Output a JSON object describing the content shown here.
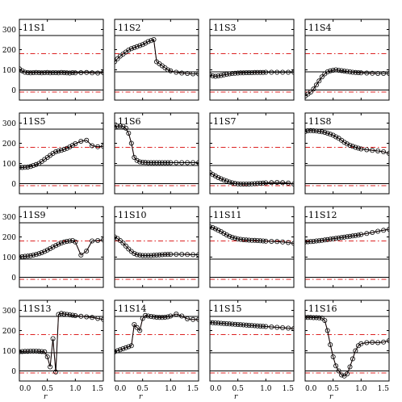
{
  "chart_data": {
    "type": "line",
    "grid_layout": "4x4",
    "x_label": "r",
    "xlim": [
      0,
      1.5
    ],
    "ylim": [
      -50,
      350
    ],
    "x_ticks": [
      "0.0",
      "0.5",
      "1.0",
      "1.5"
    ],
    "y_ticks": [
      "0",
      "100",
      "200",
      "300"
    ],
    "reference_lines": {
      "solid": [
        0,
        90,
        270
      ],
      "dash_dot": [
        -10,
        180
      ]
    },
    "colors": {
      "data": "#000000",
      "reference_dash": "#dd2222",
      "frame": "#000000"
    },
    "panels": [
      {
        "name": "11S1",
        "x": [
          0,
          0.05,
          0.1,
          0.15,
          0.2,
          0.25,
          0.3,
          0.35,
          0.4,
          0.45,
          0.5,
          0.55,
          0.6,
          0.65,
          0.7,
          0.75,
          0.8,
          0.85,
          0.9,
          0.95,
          1.0,
          1.1,
          1.2,
          1.3,
          1.4,
          1.5
        ],
        "y": [
          105,
          95,
          88,
          86,
          85,
          86,
          87,
          86,
          85,
          86,
          87,
          85,
          86,
          86,
          85,
          87,
          86,
          85,
          84,
          86,
          85,
          86,
          87,
          85,
          84,
          86
        ]
      },
      {
        "name": "11S2",
        "x": [
          0,
          0.05,
          0.1,
          0.15,
          0.2,
          0.25,
          0.3,
          0.35,
          0.4,
          0.45,
          0.5,
          0.55,
          0.6,
          0.65,
          0.7,
          0.75,
          0.8,
          0.85,
          0.9,
          0.95,
          1.0,
          1.1,
          1.2,
          1.3,
          1.4,
          1.5
        ],
        "y": [
          140,
          155,
          168,
          178,
          188,
          198,
          205,
          210,
          215,
          220,
          225,
          232,
          240,
          245,
          250,
          140,
          130,
          120,
          110,
          100,
          95,
          88,
          84,
          82,
          80,
          80
        ]
      },
      {
        "name": "11S3",
        "x": [
          0,
          0.05,
          0.1,
          0.15,
          0.2,
          0.25,
          0.3,
          0.35,
          0.4,
          0.45,
          0.5,
          0.55,
          0.6,
          0.65,
          0.7,
          0.75,
          0.8,
          0.85,
          0.9,
          0.95,
          1.0,
          1.1,
          1.2,
          1.3,
          1.4,
          1.5
        ],
        "y": [
          75,
          70,
          68,
          70,
          72,
          75,
          78,
          80,
          82,
          83,
          84,
          85,
          85,
          86,
          86,
          86,
          87,
          87,
          87,
          87,
          88,
          88,
          88,
          88,
          88,
          88
        ]
      },
      {
        "name": "11S4",
        "x": [
          0,
          0.05,
          0.1,
          0.15,
          0.2,
          0.25,
          0.3,
          0.35,
          0.4,
          0.45,
          0.5,
          0.55,
          0.6,
          0.65,
          0.7,
          0.75,
          0.8,
          0.85,
          0.9,
          0.95,
          1.0,
          1.1,
          1.2,
          1.3,
          1.4,
          1.5
        ],
        "y": [
          -30,
          -20,
          -10,
          5,
          25,
          45,
          65,
          80,
          90,
          95,
          98,
          100,
          98,
          96,
          94,
          92,
          90,
          88,
          87,
          86,
          85,
          84,
          83,
          82,
          82,
          82
        ]
      },
      {
        "name": "11S5",
        "x": [
          0,
          0.05,
          0.1,
          0.15,
          0.2,
          0.25,
          0.3,
          0.35,
          0.4,
          0.45,
          0.5,
          0.55,
          0.6,
          0.65,
          0.7,
          0.75,
          0.8,
          0.85,
          0.9,
          0.95,
          1.0,
          1.1,
          1.2,
          1.3,
          1.4,
          1.5
        ],
        "y": [
          80,
          80,
          81,
          82,
          85,
          90,
          95,
          100,
          110,
          120,
          130,
          140,
          150,
          158,
          162,
          165,
          170,
          175,
          182,
          190,
          198,
          210,
          215,
          188,
          183,
          185
        ]
      },
      {
        "name": "11S6",
        "x": [
          0,
          0.05,
          0.1,
          0.15,
          0.2,
          0.25,
          0.3,
          0.35,
          0.4,
          0.45,
          0.5,
          0.55,
          0.6,
          0.65,
          0.7,
          0.75,
          0.8,
          0.85,
          0.9,
          0.95,
          1.0,
          1.1,
          1.2,
          1.3,
          1.4,
          1.5
        ],
        "y": [
          280,
          285,
          286,
          284,
          275,
          250,
          200,
          130,
          115,
          108,
          106,
          105,
          104,
          104,
          104,
          104,
          104,
          104,
          104,
          104,
          104,
          104,
          104,
          104,
          104,
          104
        ]
      },
      {
        "name": "11S7",
        "x": [
          0,
          0.05,
          0.1,
          0.15,
          0.2,
          0.25,
          0.3,
          0.35,
          0.4,
          0.45,
          0.5,
          0.55,
          0.6,
          0.65,
          0.7,
          0.75,
          0.8,
          0.85,
          0.9,
          0.95,
          1.0,
          1.1,
          1.2,
          1.3,
          1.4,
          1.5
        ],
        "y": [
          55,
          45,
          38,
          30,
          24,
          18,
          13,
          8,
          4,
          1,
          -1,
          -2,
          -2,
          -2,
          -2,
          -1,
          0,
          1,
          2,
          3,
          4,
          5,
          6,
          5,
          3,
          -2
        ]
      },
      {
        "name": "11S8",
        "x": [
          0,
          0.05,
          0.1,
          0.15,
          0.2,
          0.25,
          0.3,
          0.35,
          0.4,
          0.45,
          0.5,
          0.55,
          0.6,
          0.65,
          0.7,
          0.75,
          0.8,
          0.85,
          0.9,
          0.95,
          1.0,
          1.1,
          1.2,
          1.3,
          1.4,
          1.5
        ],
        "y": [
          258,
          262,
          263,
          262,
          261,
          259,
          257,
          254,
          250,
          245,
          240,
          232,
          225,
          215,
          205,
          197,
          190,
          185,
          180,
          176,
          172,
          168,
          165,
          162,
          158,
          150
        ]
      },
      {
        "name": "11S9",
        "x": [
          0,
          0.05,
          0.1,
          0.15,
          0.2,
          0.25,
          0.3,
          0.35,
          0.4,
          0.45,
          0.5,
          0.55,
          0.6,
          0.65,
          0.7,
          0.75,
          0.8,
          0.85,
          0.9,
          0.95,
          1.0,
          1.1,
          1.2,
          1.3,
          1.4,
          1.5
        ],
        "y": [
          100,
          102,
          104,
          105,
          107,
          110,
          113,
          117,
          122,
          128,
          135,
          142,
          150,
          157,
          164,
          170,
          175,
          178,
          180,
          182,
          175,
          110,
          130,
          180,
          182,
          185
        ]
      },
      {
        "name": "11S10",
        "x": [
          0,
          0.05,
          0.1,
          0.15,
          0.2,
          0.25,
          0.3,
          0.35,
          0.4,
          0.45,
          0.5,
          0.55,
          0.6,
          0.65,
          0.7,
          0.75,
          0.8,
          0.85,
          0.9,
          0.95,
          1.0,
          1.1,
          1.2,
          1.3,
          1.4,
          1.5
        ],
        "y": [
          200,
          192,
          182,
          170,
          155,
          140,
          128,
          118,
          112,
          110,
          108,
          108,
          108,
          108,
          109,
          110,
          111,
          112,
          113,
          113,
          114,
          114,
          114,
          113,
          112,
          112
        ]
      },
      {
        "name": "11S11",
        "x": [
          0,
          0.05,
          0.1,
          0.15,
          0.2,
          0.25,
          0.3,
          0.35,
          0.4,
          0.45,
          0.5,
          0.55,
          0.6,
          0.65,
          0.7,
          0.75,
          0.8,
          0.85,
          0.9,
          0.95,
          1.0,
          1.1,
          1.2,
          1.3,
          1.4,
          1.5
        ],
        "y": [
          250,
          246,
          240,
          233,
          226,
          218,
          210,
          203,
          198,
          194,
          190,
          188,
          186,
          185,
          184,
          183,
          183,
          182,
          181,
          180,
          179,
          178,
          177,
          175,
          172,
          168
        ]
      },
      {
        "name": "11S12",
        "x": [
          0,
          0.05,
          0.1,
          0.15,
          0.2,
          0.25,
          0.3,
          0.35,
          0.4,
          0.45,
          0.5,
          0.55,
          0.6,
          0.65,
          0.7,
          0.75,
          0.8,
          0.85,
          0.9,
          0.95,
          1.0,
          1.1,
          1.2,
          1.3,
          1.4,
          1.5
        ],
        "y": [
          175,
          176,
          177,
          178,
          180,
          181,
          183,
          185,
          187,
          189,
          191,
          193,
          195,
          197,
          199,
          201,
          203,
          205,
          207,
          209,
          212,
          217,
          222,
          228,
          233,
          238
        ]
      },
      {
        "name": "11S13",
        "x": [
          0,
          0.05,
          0.1,
          0.15,
          0.2,
          0.25,
          0.3,
          0.35,
          0.4,
          0.45,
          0.5,
          0.55,
          0.6,
          0.65,
          0.7,
          0.75,
          0.8,
          0.85,
          0.9,
          0.95,
          1.0,
          1.1,
          1.2,
          1.3,
          1.4,
          1.5
        ],
        "y": [
          95,
          96,
          97,
          97,
          98,
          98,
          98,
          97,
          96,
          95,
          70,
          20,
          160,
          -5,
          280,
          285,
          282,
          280,
          278,
          276,
          274,
          271,
          268,
          265,
          260,
          255
        ]
      },
      {
        "name": "11S14",
        "x": [
          0,
          0.05,
          0.1,
          0.15,
          0.2,
          0.25,
          0.3,
          0.35,
          0.4,
          0.45,
          0.5,
          0.55,
          0.6,
          0.65,
          0.7,
          0.75,
          0.8,
          0.85,
          0.9,
          0.95,
          1.0,
          1.1,
          1.2,
          1.3,
          1.4,
          1.5
        ],
        "y": [
          95,
          100,
          105,
          110,
          115,
          120,
          125,
          230,
          215,
          200,
          260,
          275,
          272,
          270,
          268,
          266,
          265,
          265,
          266,
          268,
          272,
          282,
          272,
          258,
          255,
          255
        ]
      },
      {
        "name": "11S15",
        "x": [
          0,
          0.05,
          0.1,
          0.15,
          0.2,
          0.25,
          0.3,
          0.35,
          0.4,
          0.45,
          0.5,
          0.55,
          0.6,
          0.65,
          0.7,
          0.75,
          0.8,
          0.85,
          0.9,
          0.95,
          1.0,
          1.1,
          1.2,
          1.3,
          1.4,
          1.5
        ],
        "y": [
          240,
          239,
          238,
          237,
          236,
          235,
          234,
          233,
          232,
          231,
          230,
          229,
          228,
          227,
          226,
          225,
          224,
          223,
          222,
          221,
          220,
          218,
          216,
          214,
          212,
          210
        ]
      },
      {
        "name": "11S16",
        "x": [
          0,
          0.05,
          0.1,
          0.15,
          0.2,
          0.25,
          0.3,
          0.35,
          0.4,
          0.45,
          0.5,
          0.55,
          0.6,
          0.65,
          0.7,
          0.75,
          0.8,
          0.85,
          0.9,
          0.95,
          1.0,
          1.1,
          1.2,
          1.3,
          1.4,
          1.5
        ],
        "y": [
          265,
          265,
          265,
          264,
          264,
          263,
          262,
          250,
          200,
          130,
          70,
          25,
          0,
          -20,
          -25,
          -15,
          20,
          60,
          100,
          125,
          135,
          140,
          142,
          140,
          143,
          150
        ]
      }
    ]
  }
}
